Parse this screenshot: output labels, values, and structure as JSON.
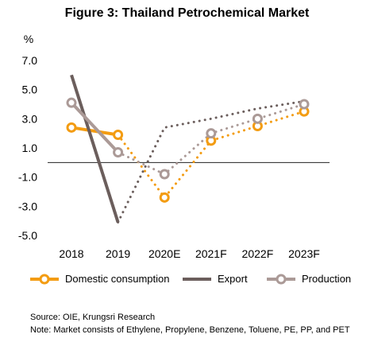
{
  "title": "Figure 3: Thailand Petrochemical Market",
  "chart_data": {
    "type": "line",
    "title": "Figure 3: Thailand Petrochemical Market",
    "ylabel": "%",
    "ylim": [
      -5.0,
      7.0
    ],
    "yticks": [
      "7.0",
      "5.0",
      "3.0",
      "1.0",
      "-1.0",
      "-3.0",
      "-5.0"
    ],
    "categories": [
      "2018",
      "2019",
      "2020E",
      "2021F",
      "2022F",
      "2023F"
    ],
    "series": [
      {
        "name": "Domestic consumption",
        "color": "#F39C12",
        "values": [
          2.4,
          1.9,
          -2.4,
          1.5,
          2.5,
          3.5
        ]
      },
      {
        "name": "Export",
        "color": "#6B5E5C",
        "values": [
          6.0,
          -4.1,
          2.4,
          3.0,
          3.7,
          4.2
        ]
      },
      {
        "name": "Production",
        "color": "#AB9A97",
        "values": [
          4.1,
          0.7,
          -0.8,
          2.0,
          3.0,
          4.0
        ]
      }
    ],
    "actual_until_index": 1,
    "grid": false,
    "legend_position": "bottom"
  },
  "footer": {
    "source": "Source: OIE, Krungsri Research",
    "note": "Note: Market consists of Ethylene, Propylene, Benzene, Toluene, PE, PP, and PET"
  }
}
